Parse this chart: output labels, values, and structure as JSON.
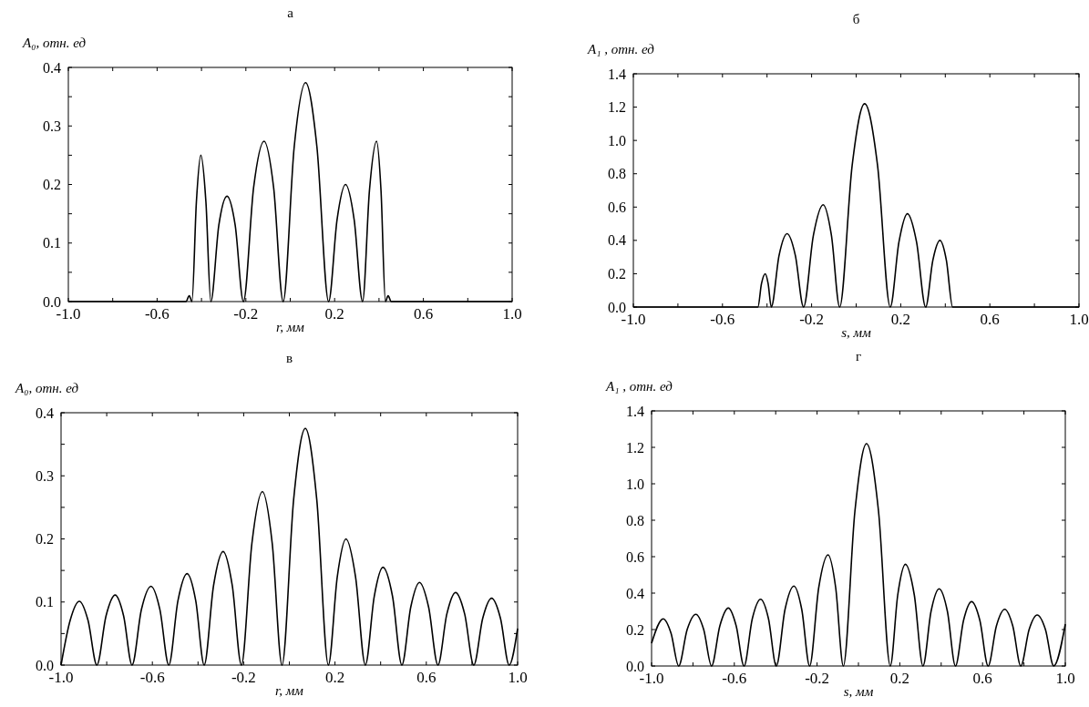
{
  "chart_data": [
    {
      "type": "line",
      "title": "а",
      "ylabel": "A₀, отн. ед",
      "xlabel": "r, мм",
      "color": "#000000",
      "x": [
        -1,
        -0.47,
        -0.455,
        -0.443,
        -0.423,
        -0.403,
        -0.38,
        -0.358,
        -0.322,
        -0.285,
        -0.248,
        -0.211,
        -0.165,
        -0.118,
        -0.075,
        -0.032,
        0.018,
        0.069,
        0.12,
        0.173,
        0.211,
        0.249,
        0.288,
        0.326,
        0.357,
        0.389,
        0.409,
        0.429,
        0.441,
        0.455,
        1
      ],
      "values": [
        0,
        0,
        0.01,
        0,
        0.17,
        0.25,
        0.17,
        0,
        0.13,
        0.18,
        0.13,
        0,
        0.195,
        0.274,
        0.195,
        0,
        0.265,
        0.374,
        0.265,
        0,
        0.14,
        0.2,
        0.14,
        0,
        0.19,
        0.274,
        0.19,
        0,
        0.01,
        0,
        0
      ],
      "xlim": [
        -1,
        1
      ],
      "xticks": [
        {
          "value": -1,
          "label": "-1.0"
        },
        {
          "value": -0.8,
          "label": null
        },
        {
          "value": -0.6,
          "label": "-0.6"
        },
        {
          "value": -0.4,
          "label": null
        },
        {
          "value": -0.2,
          "label": "-0.2"
        },
        {
          "value": 0,
          "label": null
        },
        {
          "value": 0.2,
          "label": "0.2"
        },
        {
          "value": 0.4,
          "label": null
        },
        {
          "value": 0.6,
          "label": "0.6"
        },
        {
          "value": 0.8,
          "label": null
        },
        {
          "value": 1,
          "label": "1.0"
        }
      ],
      "ylim": [
        0,
        0.4
      ],
      "yticks": [
        {
          "value": 0,
          "label": "0.0"
        },
        {
          "value": 0.05,
          "label": null
        },
        {
          "value": 0.1,
          "label": "0.1"
        },
        {
          "value": 0.15,
          "label": null
        },
        {
          "value": 0.2,
          "label": "0.2"
        },
        {
          "value": 0.25,
          "label": null
        },
        {
          "value": 0.3,
          "label": "0.3"
        },
        {
          "value": 0.35,
          "label": null
        },
        {
          "value": 0.4,
          "label": "0.4"
        }
      ]
    },
    {
      "type": "line",
      "title": "б",
      "ylabel": "A₁ , отн. ед",
      "xlabel": "s, мм",
      "color": "#000000",
      "x": [
        -1,
        -0.441,
        -0.425,
        -0.408,
        -0.395,
        -0.381,
        -0.346,
        -0.31,
        -0.273,
        -0.236,
        -0.192,
        -0.148,
        -0.111,
        -0.074,
        -0.018,
        0.038,
        0.096,
        0.153,
        0.192,
        0.23,
        0.271,
        0.312,
        0.344,
        0.376,
        0.405,
        0.433,
        1
      ],
      "values": [
        0,
        0,
        0.14,
        0.2,
        0.14,
        0,
        0.31,
        0.44,
        0.31,
        0,
        0.43,
        0.614,
        0.43,
        0,
        0.85,
        1.22,
        0.85,
        0,
        0.39,
        0.56,
        0.39,
        0,
        0.28,
        0.4,
        0.28,
        0,
        0
      ],
      "xlim": [
        -1,
        1
      ],
      "xticks": [
        {
          "value": -1,
          "label": "-1.0"
        },
        {
          "value": -0.8,
          "label": null
        },
        {
          "value": -0.6,
          "label": "-0.6"
        },
        {
          "value": -0.4,
          "label": null
        },
        {
          "value": -0.2,
          "label": "-0.2"
        },
        {
          "value": 0,
          "label": null
        },
        {
          "value": 0.2,
          "label": "0.2"
        },
        {
          "value": 0.4,
          "label": null
        },
        {
          "value": 0.6,
          "label": "0.6"
        },
        {
          "value": 0.8,
          "label": null
        },
        {
          "value": 1,
          "label": "1.0"
        }
      ],
      "ylim": [
        0,
        1.4
      ],
      "yticks": [
        {
          "value": 0,
          "label": "0.0"
        },
        {
          "value": 0.2,
          "label": "0.2"
        },
        {
          "value": 0.4,
          "label": "0.4"
        },
        {
          "value": 0.6,
          "label": "0.6"
        },
        {
          "value": 0.8,
          "label": "0.8"
        },
        {
          "value": 1,
          "label": "1.0"
        },
        {
          "value": 1.2,
          "label": "1.2"
        },
        {
          "value": 1.4,
          "label": "1.4"
        }
      ]
    },
    {
      "type": "line",
      "title": "в",
      "ylabel": "A₀, отн. ед",
      "xlabel": "r, мм",
      "color": "#000000",
      "x": [
        -1,
        -0.96,
        -0.92,
        -0.882,
        -0.843,
        -0.803,
        -0.763,
        -0.726,
        -0.689,
        -0.648,
        -0.606,
        -0.567,
        -0.528,
        -0.488,
        -0.448,
        -0.41,
        -0.373,
        -0.332,
        -0.29,
        -0.25,
        -0.21,
        -0.164,
        -0.118,
        -0.075,
        -0.032,
        0.019,
        0.07,
        0.12,
        0.171,
        0.21,
        0.248,
        0.29,
        0.333,
        0.372,
        0.41,
        0.452,
        0.493,
        0.532,
        0.57,
        0.61,
        0.651,
        0.69,
        0.728,
        0.768,
        0.808,
        0.847,
        0.886,
        0.925,
        0.963,
        1
      ],
      "values": [
        0,
        0.071,
        0.101,
        0.071,
        0,
        0.078,
        0.111,
        0.078,
        0,
        0.088,
        0.125,
        0.088,
        0,
        0.102,
        0.145,
        0.102,
        0,
        0.126,
        0.18,
        0.126,
        0,
        0.193,
        0.275,
        0.193,
        0,
        0.263,
        0.375,
        0.263,
        0,
        0.14,
        0.2,
        0.14,
        0,
        0.109,
        0.155,
        0.109,
        0,
        0.092,
        0.131,
        0.092,
        0,
        0.081,
        0.115,
        0.081,
        0,
        0.074,
        0.106,
        0.074,
        0,
        0.058
      ],
      "xlim": [
        -1,
        1
      ],
      "xticks": [
        {
          "value": -1,
          "label": "-1.0"
        },
        {
          "value": -0.8,
          "label": null
        },
        {
          "value": -0.6,
          "label": "-0.6"
        },
        {
          "value": -0.4,
          "label": null
        },
        {
          "value": -0.2,
          "label": "-0.2"
        },
        {
          "value": 0,
          "label": null
        },
        {
          "value": 0.2,
          "label": "0.2"
        },
        {
          "value": 0.4,
          "label": null
        },
        {
          "value": 0.6,
          "label": "0.6"
        },
        {
          "value": 0.8,
          "label": null
        },
        {
          "value": 1,
          "label": "1.0"
        }
      ],
      "ylim": [
        0,
        0.4
      ],
      "yticks": [
        {
          "value": 0,
          "label": "0.0"
        },
        {
          "value": 0.05,
          "label": null
        },
        {
          "value": 0.1,
          "label": "0.1"
        },
        {
          "value": 0.15,
          "label": null
        },
        {
          "value": 0.2,
          "label": "0.2"
        },
        {
          "value": 0.25,
          "label": null
        },
        {
          "value": 0.3,
          "label": "0.3"
        },
        {
          "value": 0.35,
          "label": null
        },
        {
          "value": 0.4,
          "label": "0.4"
        }
      ]
    },
    {
      "type": "line",
      "title": "г",
      "ylabel": "A₁ , отн. ед",
      "xlabel": "s, мм",
      "color": "#000000",
      "x": [
        -1,
        -0.944,
        -0.906,
        -0.869,
        -0.828,
        -0.786,
        -0.748,
        -0.71,
        -0.67,
        -0.629,
        -0.591,
        -0.553,
        -0.513,
        -0.473,
        -0.435,
        -0.397,
        -0.355,
        -0.312,
        -0.274,
        -0.236,
        -0.192,
        -0.147,
        -0.11,
        -0.073,
        -0.017,
        0.039,
        0.097,
        0.154,
        0.19,
        0.227,
        0.27,
        0.312,
        0.351,
        0.39,
        0.43,
        0.469,
        0.508,
        0.547,
        0.587,
        0.627,
        0.667,
        0.707,
        0.746,
        0.785,
        0.825,
        0.864,
        0.904,
        0.944,
        1
      ],
      "values": [
        0.125,
        0.259,
        0.18,
        0,
        0.2,
        0.284,
        0.2,
        0,
        0.22,
        0.318,
        0.22,
        0,
        0.26,
        0.366,
        0.26,
        0,
        0.31,
        0.439,
        0.31,
        0,
        0.43,
        0.61,
        0.43,
        0,
        0.85,
        1.22,
        0.85,
        0,
        0.39,
        0.558,
        0.39,
        0,
        0.3,
        0.424,
        0.3,
        0,
        0.25,
        0.353,
        0.25,
        0,
        0.22,
        0.311,
        0.22,
        0,
        0.2,
        0.28,
        0.2,
        0,
        0.23
      ],
      "xlim": [
        -1,
        1
      ],
      "xticks": [
        {
          "value": -1,
          "label": "-1.0"
        },
        {
          "value": -0.8,
          "label": null
        },
        {
          "value": -0.6,
          "label": "-0.6"
        },
        {
          "value": -0.4,
          "label": null
        },
        {
          "value": -0.2,
          "label": "-0.2"
        },
        {
          "value": 0,
          "label": null
        },
        {
          "value": 0.2,
          "label": "0.2"
        },
        {
          "value": 0.4,
          "label": null
        },
        {
          "value": 0.6,
          "label": "0.6"
        },
        {
          "value": 0.8,
          "label": null
        },
        {
          "value": 1,
          "label": "1.0"
        }
      ],
      "ylim": [
        0,
        1.4
      ],
      "yticks": [
        {
          "value": 0,
          "label": "0.0"
        },
        {
          "value": 0.2,
          "label": "0.2"
        },
        {
          "value": 0.4,
          "label": "0.4"
        },
        {
          "value": 0.6,
          "label": "0.6"
        },
        {
          "value": 0.8,
          "label": "0.8"
        },
        {
          "value": 1,
          "label": "1.0"
        },
        {
          "value": 1.2,
          "label": "1.2"
        },
        {
          "value": 1.4,
          "label": "1.4"
        }
      ]
    }
  ]
}
